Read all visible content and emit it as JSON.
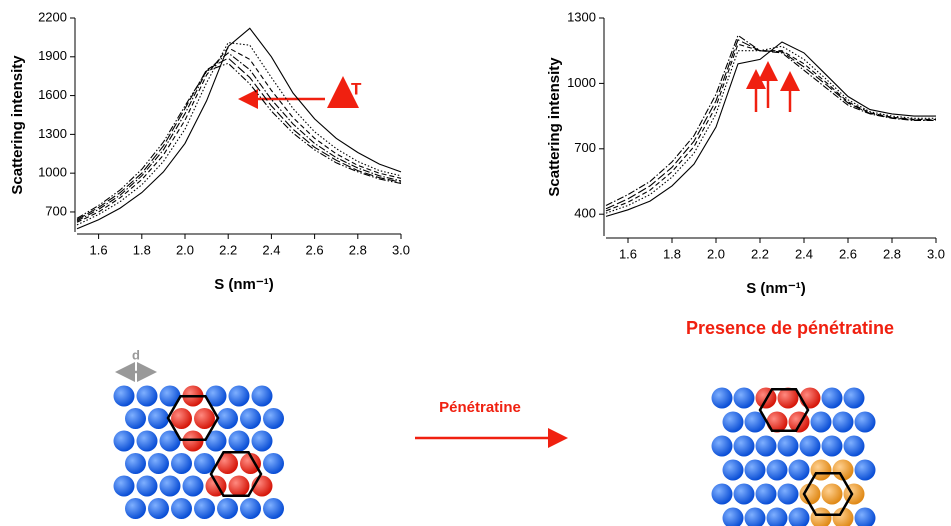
{
  "chart_data": [
    {
      "type": "line",
      "y_label": "Scattering intensity",
      "x_label": "S (nm⁻¹)",
      "annotation": "T",
      "x": [
        1.5,
        1.6,
        1.7,
        1.8,
        1.9,
        2.0,
        2.1,
        2.2,
        2.3,
        2.4,
        2.5,
        2.6,
        2.7,
        2.8,
        2.9,
        3.0
      ],
      "xlim": [
        1.5,
        3.0
      ],
      "xticks": [
        1.6,
        1.8,
        {
          "value": 2,
          "label": "2.0"
        },
        2.2,
        2.4,
        2.6,
        2.8,
        {
          "value": 3,
          "label": "3.0"
        }
      ],
      "ylim": [
        545,
        2200
      ],
      "yticks": [
        700,
        1000,
        1300,
        1600,
        1900,
        2200
      ],
      "series": [
        {
          "color": "#000000",
          "dash": "solid",
          "values": [
            570,
            640,
            730,
            850,
            1010,
            1230,
            1560,
            1980,
            2120,
            1900,
            1620,
            1420,
            1270,
            1160,
            1070,
            1010
          ]
        },
        {
          "color": "#000000",
          "dash": "dotted",
          "values": [
            600,
            680,
            780,
            910,
            1090,
            1340,
            1700,
            2010,
            1990,
            1740,
            1500,
            1320,
            1190,
            1090,
            1020,
            980
          ]
        },
        {
          "color": "#000000",
          "dash": "dashed",
          "values": [
            620,
            700,
            810,
            950,
            1140,
            1410,
            1760,
            1970,
            1880,
            1640,
            1430,
            1270,
            1150,
            1060,
            1000,
            960
          ]
        },
        {
          "color": "#000000",
          "dash": "dashdot",
          "values": [
            630,
            720,
            830,
            980,
            1180,
            1460,
            1790,
            1930,
            1800,
            1570,
            1380,
            1230,
            1120,
            1040,
            980,
            940
          ]
        },
        {
          "color": "#000000",
          "dash": "longdash",
          "values": [
            640,
            735,
            850,
            1000,
            1210,
            1500,
            1800,
            1890,
            1740,
            1520,
            1340,
            1200,
            1100,
            1020,
            965,
            930
          ]
        },
        {
          "color": "#000000",
          "dash": "dashdotdot",
          "values": [
            650,
            750,
            870,
            1030,
            1240,
            1520,
            1790,
            1850,
            1690,
            1480,
            1310,
            1180,
            1080,
            1010,
            955,
            920
          ]
        }
      ]
    },
    {
      "type": "line",
      "y_label": "Scattering intensity",
      "x_label": "S (nm⁻¹)",
      "x": [
        1.5,
        1.6,
        1.7,
        1.8,
        1.9,
        2.0,
        2.1,
        2.2,
        2.3,
        2.4,
        2.5,
        2.6,
        2.7,
        2.8,
        2.9,
        3.0
      ],
      "xlim": [
        1.5,
        3.0
      ],
      "xticks": [
        1.6,
        1.8,
        {
          "value": 2,
          "label": "2.0"
        },
        2.2,
        2.4,
        2.6,
        2.8,
        {
          "value": 3,
          "label": "3.0"
        }
      ],
      "ylim": [
        300,
        1300
      ],
      "yticks": [
        400,
        700,
        1000,
        1300
      ],
      "series": [
        {
          "color": "#000000",
          "dash": "solid",
          "values": [
            390,
            420,
            460,
            530,
            630,
            800,
            1090,
            1110,
            1190,
            1140,
            1040,
            940,
            880,
            860,
            850,
            850
          ]
        },
        {
          "color": "#000000",
          "dash": "dotted",
          "values": [
            405,
            440,
            490,
            570,
            680,
            860,
            1150,
            1150,
            1170,
            1110,
            1020,
            925,
            870,
            850,
            840,
            840
          ]
        },
        {
          "color": "#000000",
          "dash": "dashed",
          "values": [
            415,
            455,
            510,
            595,
            710,
            895,
            1180,
            1150,
            1150,
            1090,
            1005,
            915,
            865,
            845,
            835,
            835
          ]
        },
        {
          "color": "#000000",
          "dash": "longdash",
          "values": [
            425,
            470,
            530,
            615,
            735,
            920,
            1200,
            1150,
            1145,
            1075,
            995,
            910,
            862,
            842,
            832,
            832
          ]
        },
        {
          "color": "#000000",
          "dash": "dashdot",
          "values": [
            440,
            490,
            550,
            640,
            760,
            950,
            1220,
            1150,
            1140,
            1060,
            980,
            900,
            860,
            840,
            830,
            830
          ]
        }
      ]
    }
  ],
  "diagram": {
    "spacing_label": "d",
    "arrow_label": "Pénétratine",
    "title": "Presence de pénétratine"
  }
}
